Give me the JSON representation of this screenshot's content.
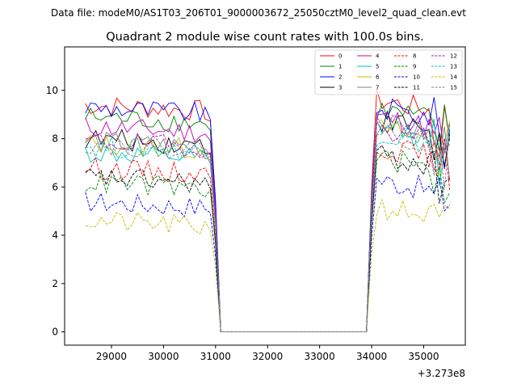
{
  "figure": {
    "suptitle": "Data file: modeM0/AS1T03_206T01_9000003672_25050cztM0_level2_quad_clean.evt",
    "x_offset_label": "+3.273e8"
  },
  "chart_data": {
    "type": "line",
    "title": "Quadrant 2 module wise count rates with 100.0s bins.",
    "xlabel": "",
    "ylabel": "",
    "xlim": [
      28100,
      35800
    ],
    "ylim": [
      -0.55,
      11.8
    ],
    "x_ticks": [
      29000,
      30000,
      31000,
      32000,
      33000,
      34000,
      35000
    ],
    "y_ticks": [
      0,
      2,
      4,
      6,
      8,
      10
    ],
    "x_tick_labels": [
      "29000",
      "30000",
      "31000",
      "32000",
      "33000",
      "34000",
      "35000"
    ],
    "y_tick_labels": [
      "0",
      "2",
      "4",
      "6",
      "8",
      "10"
    ],
    "grid": false,
    "legend": {
      "placement": "top-right",
      "columns": 4
    },
    "bin_start": 28500,
    "bin_width": 100,
    "n_bins": 71,
    "series": [
      {
        "name": "0",
        "color": "#ff0000",
        "dash": "solid",
        "level1": 9.4,
        "level2": 9.6
      },
      {
        "name": "1",
        "color": "#008000",
        "dash": "solid",
        "level1": 8.9,
        "level2": 9.2
      },
      {
        "name": "2",
        "color": "#0000ff",
        "dash": "solid",
        "level1": 9.3,
        "level2": 9.3
      },
      {
        "name": "3",
        "color": "#000000",
        "dash": "solid",
        "level1": 8.0,
        "level2": 8.8
      },
      {
        "name": "4",
        "color": "#bf00bf",
        "dash": "solid",
        "level1": 8.5,
        "level2": 8.9
      },
      {
        "name": "5",
        "color": "#00bfbf",
        "dash": "solid",
        "level1": 7.4,
        "level2": 8.5
      },
      {
        "name": "6",
        "color": "#bfbf00",
        "dash": "solid",
        "level1": 7.8,
        "level2": 8.4
      },
      {
        "name": "7",
        "color": "#808080",
        "dash": "solid",
        "level1": 7.9,
        "level2": 8.6
      },
      {
        "name": "8",
        "color": "#ff0000",
        "dash": "dashed",
        "level1": 6.8,
        "level2": 7.7
      },
      {
        "name": "9",
        "color": "#008000",
        "dash": "dashed",
        "level1": 6.2,
        "level2": 7.2
      },
      {
        "name": "10",
        "color": "#0000ff",
        "dash": "dashed",
        "level1": 5.4,
        "level2": 6.3
      },
      {
        "name": "11",
        "color": "#000000",
        "dash": "dashed",
        "level1": 6.4,
        "level2": 7.3
      },
      {
        "name": "12",
        "color": "#bf00bf",
        "dash": "dashed",
        "level1": 7.9,
        "level2": 8.5
      },
      {
        "name": "13",
        "color": "#00bfbf",
        "dash": "dashed",
        "level1": 7.7,
        "level2": 8.2
      },
      {
        "name": "14",
        "color": "#bfbf00",
        "dash": "dashed",
        "level1": 4.6,
        "level2": 5.2
      },
      {
        "name": "15",
        "color": "#808080",
        "dash": "dashed",
        "level1": 7.8,
        "level2": 8.3
      }
    ]
  }
}
